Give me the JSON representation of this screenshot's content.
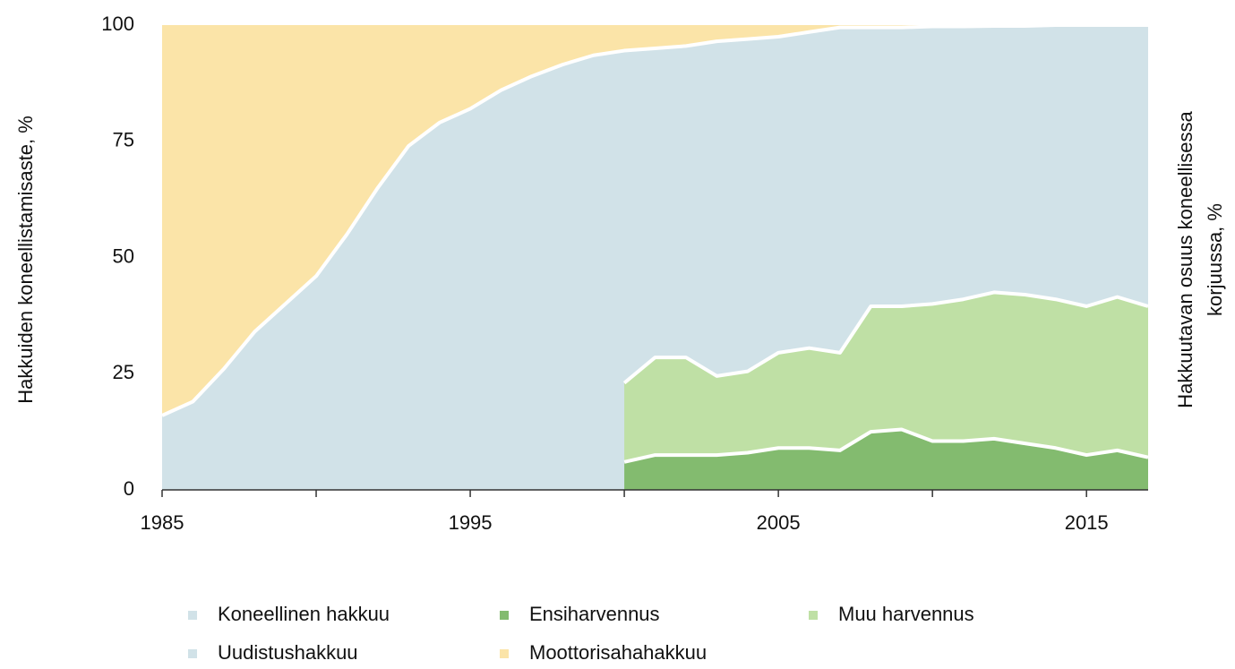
{
  "chart_data": {
    "type": "area",
    "stacked": true,
    "ylabel": "Hakkuiden koneellistamisaste, %",
    "y2label": [
      "Hakkuutavan osuus koneellisessa",
      "korjuussa, %"
    ],
    "x": [
      1985,
      1986,
      1987,
      1988,
      1989,
      1990,
      1991,
      1992,
      1993,
      1994,
      1995,
      1996,
      1997,
      1998,
      1999,
      2000,
      2001,
      2002,
      2003,
      2004,
      2005,
      2006,
      2007,
      2008,
      2009,
      2010,
      2011,
      2012,
      2013,
      2014,
      2015,
      2016,
      2017
    ],
    "xlim": [
      1985,
      2017
    ],
    "xticks": [
      1985,
      1995,
      2005,
      2015
    ],
    "xminorticks": [
      1990,
      2000,
      2010
    ],
    "ylim": [
      0,
      100
    ],
    "yticks": [
      0,
      25,
      50,
      75,
      100
    ],
    "y2lim": [
      0,
      100
    ],
    "series": [
      {
        "name": "Koneellinen hakkuu",
        "color": "#d1e2e8",
        "values": [
          16,
          19,
          26,
          34,
          40,
          46,
          55,
          65,
          74,
          79,
          82,
          86,
          89,
          91.5,
          93.5,
          94.5,
          95,
          95.5,
          96.5,
          97,
          97.5,
          98.5,
          99.5,
          99.5,
          99.5,
          99.7,
          99.7,
          99.8,
          99.8,
          100,
          100,
          100,
          100
        ]
      },
      {
        "name": "Ensiharvennus",
        "color": "#83bb6f",
        "axis": "y2",
        "values": [
          null,
          null,
          null,
          null,
          null,
          null,
          null,
          null,
          null,
          null,
          null,
          null,
          null,
          null,
          null,
          6,
          7.5,
          7.5,
          7.5,
          8,
          9,
          9,
          8.5,
          12.5,
          13,
          10.5,
          10.5,
          11,
          10,
          9,
          7.5,
          8.5,
          7
        ]
      },
      {
        "name": "Muu harvennus",
        "color": "#bfe0a5",
        "axis": "y2",
        "values": [
          null,
          null,
          null,
          null,
          null,
          null,
          null,
          null,
          null,
          null,
          null,
          null,
          null,
          null,
          null,
          17,
          21,
          21,
          17,
          17.5,
          20.5,
          21.5,
          21,
          27,
          26.5,
          29.5,
          30.5,
          31.5,
          32,
          32,
          32,
          33,
          32.5
        ]
      },
      {
        "name": "Uudistushakkuu",
        "color": "#d1e2e8",
        "axis": "y2",
        "values": [
          null,
          null,
          null,
          null,
          null,
          null,
          null,
          null,
          null,
          null,
          null,
          null,
          null,
          null,
          null,
          77,
          71.5,
          71.5,
          75.5,
          74.5,
          70.5,
          69.5,
          70.5,
          60.5,
          60.5,
          60,
          59,
          57.5,
          58,
          59,
          60.5,
          58.5,
          60.5
        ]
      },
      {
        "name": "Moottorisahahakkuu",
        "color": "#fbe4a8",
        "values": [
          84,
          81,
          74,
          66,
          60,
          54,
          45,
          35,
          26,
          21,
          18,
          14,
          11,
          8.5,
          6.5,
          5.5,
          5,
          4.5,
          3.5,
          3,
          2.5,
          1.5,
          0.5,
          0.5,
          0.5,
          0.3,
          0.3,
          0.2,
          0.2,
          0,
          0,
          0,
          0
        ]
      }
    ]
  }
}
